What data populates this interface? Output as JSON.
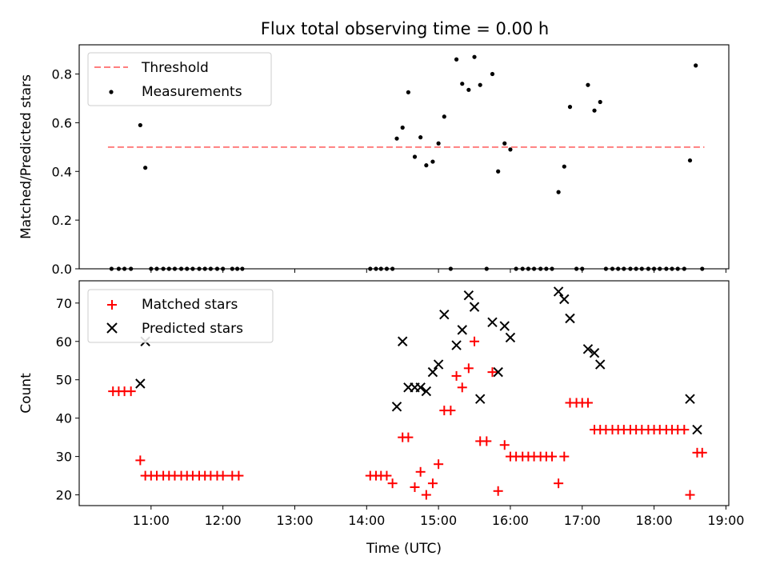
{
  "figure": {
    "title": "Flux total observing time = 0.00 h"
  },
  "chart_data": [
    {
      "type": "scatter",
      "ylabel": "Matched/Predicted stars",
      "ylim": [
        0.0,
        0.92
      ],
      "xlim": [
        10.0,
        19.04
      ],
      "yticks": [
        0.0,
        0.2,
        0.4,
        0.6,
        0.8
      ],
      "ytick_labels": [
        "0.0",
        "0.2",
        "0.4",
        "0.6",
        "0.8"
      ],
      "xticks": [
        11,
        12,
        13,
        14,
        15,
        16,
        17,
        18,
        19
      ],
      "legend_position": "upper-left",
      "threshold": {
        "name": "Threshold",
        "value": 0.5,
        "x_range": [
          10.4,
          18.7
        ],
        "color": "#ff7f7f",
        "style": "dashed"
      },
      "series": [
        {
          "name": "Measurements",
          "marker": "dot",
          "color": "#000000",
          "points": [
            [
              10.45,
              0
            ],
            [
              10.55,
              0
            ],
            [
              10.63,
              0
            ],
            [
              10.72,
              0
            ],
            [
              10.85,
              0.59
            ],
            [
              10.92,
              0.415
            ],
            [
              11.0,
              0
            ],
            [
              11.08,
              0
            ],
            [
              11.17,
              0
            ],
            [
              11.25,
              0
            ],
            [
              11.33,
              0
            ],
            [
              11.42,
              0
            ],
            [
              11.5,
              0
            ],
            [
              11.58,
              0
            ],
            [
              11.67,
              0
            ],
            [
              11.75,
              0
            ],
            [
              11.83,
              0
            ],
            [
              11.92,
              0
            ],
            [
              12.0,
              0
            ],
            [
              12.13,
              0
            ],
            [
              12.2,
              0
            ],
            [
              12.27,
              0
            ],
            [
              14.05,
              0
            ],
            [
              14.13,
              0
            ],
            [
              14.2,
              0
            ],
            [
              14.28,
              0
            ],
            [
              14.36,
              0
            ],
            [
              14.42,
              0.535
            ],
            [
              14.5,
              0.58
            ],
            [
              14.58,
              0.725
            ],
            [
              14.67,
              0.46
            ],
            [
              14.75,
              0.54
            ],
            [
              14.83,
              0.425
            ],
            [
              14.92,
              0.44
            ],
            [
              15.0,
              0.515
            ],
            [
              15.08,
              0.625
            ],
            [
              15.17,
              0
            ],
            [
              15.25,
              0.86
            ],
            [
              15.33,
              0.76
            ],
            [
              15.42,
              0.735
            ],
            [
              15.5,
              0.87
            ],
            [
              15.58,
              0.755
            ],
            [
              15.67,
              0
            ],
            [
              15.75,
              0.8
            ],
            [
              15.83,
              0.4
            ],
            [
              15.92,
              0.515
            ],
            [
              16.0,
              0.49
            ],
            [
              16.08,
              0
            ],
            [
              16.17,
              0
            ],
            [
              16.25,
              0
            ],
            [
              16.33,
              0
            ],
            [
              16.42,
              0
            ],
            [
              16.5,
              0
            ],
            [
              16.58,
              0
            ],
            [
              16.67,
              0.315
            ],
            [
              16.75,
              0.42
            ],
            [
              16.83,
              0.665
            ],
            [
              16.92,
              0
            ],
            [
              17.0,
              0
            ],
            [
              17.08,
              0.755
            ],
            [
              17.17,
              0.65
            ],
            [
              17.25,
              0.685
            ],
            [
              17.33,
              0
            ],
            [
              17.42,
              0
            ],
            [
              17.5,
              0
            ],
            [
              17.58,
              0
            ],
            [
              17.67,
              0
            ],
            [
              17.75,
              0
            ],
            [
              17.83,
              0
            ],
            [
              17.92,
              0
            ],
            [
              18.0,
              0
            ],
            [
              18.08,
              0
            ],
            [
              18.17,
              0
            ],
            [
              18.25,
              0
            ],
            [
              18.33,
              0
            ],
            [
              18.42,
              0
            ],
            [
              18.5,
              0.445
            ],
            [
              18.58,
              0.835
            ],
            [
              18.67,
              0
            ]
          ]
        }
      ]
    },
    {
      "type": "scatter",
      "ylabel": "Count",
      "xlabel": "Time (UTC)",
      "ylim": [
        17.2,
        75.8
      ],
      "xlim": [
        10.0,
        19.04
      ],
      "yticks": [
        20,
        30,
        40,
        50,
        60,
        70
      ],
      "ytick_labels": [
        "20",
        "30",
        "40",
        "50",
        "60",
        "70"
      ],
      "xticks": [
        11,
        12,
        13,
        14,
        15,
        16,
        17,
        18,
        19
      ],
      "xtick_labels": [
        "11:00",
        "12:00",
        "13:00",
        "14:00",
        "15:00",
        "16:00",
        "17:00",
        "18:00",
        "19:00"
      ],
      "legend_position": "upper-left",
      "series": [
        {
          "name": "Matched stars",
          "marker": "plus",
          "color": "#ff0000",
          "points": [
            [
              10.47,
              47
            ],
            [
              10.55,
              47
            ],
            [
              10.63,
              47
            ],
            [
              10.72,
              47
            ],
            [
              10.85,
              29
            ],
            [
              10.92,
              25
            ],
            [
              11.0,
              25
            ],
            [
              11.08,
              25
            ],
            [
              11.17,
              25
            ],
            [
              11.25,
              25
            ],
            [
              11.33,
              25
            ],
            [
              11.42,
              25
            ],
            [
              11.5,
              25
            ],
            [
              11.58,
              25
            ],
            [
              11.67,
              25
            ],
            [
              11.75,
              25
            ],
            [
              11.83,
              25
            ],
            [
              11.92,
              25
            ],
            [
              12.0,
              25
            ],
            [
              12.13,
              25
            ],
            [
              12.22,
              25
            ],
            [
              14.05,
              25
            ],
            [
              14.13,
              25
            ],
            [
              14.2,
              25
            ],
            [
              14.28,
              25
            ],
            [
              14.36,
              23
            ],
            [
              14.5,
              35
            ],
            [
              14.58,
              35
            ],
            [
              14.67,
              22
            ],
            [
              14.75,
              26
            ],
            [
              14.83,
              20
            ],
            [
              14.92,
              23
            ],
            [
              15.0,
              28
            ],
            [
              15.08,
              42
            ],
            [
              15.17,
              42
            ],
            [
              15.25,
              51
            ],
            [
              15.33,
              48
            ],
            [
              15.42,
              53
            ],
            [
              15.5,
              60
            ],
            [
              15.58,
              34
            ],
            [
              15.67,
              34
            ],
            [
              15.75,
              52
            ],
            [
              15.83,
              21
            ],
            [
              15.92,
              33
            ],
            [
              16.0,
              30
            ],
            [
              16.08,
              30
            ],
            [
              16.17,
              30
            ],
            [
              16.25,
              30
            ],
            [
              16.33,
              30
            ],
            [
              16.42,
              30
            ],
            [
              16.5,
              30
            ],
            [
              16.58,
              30
            ],
            [
              16.67,
              23
            ],
            [
              16.75,
              30
            ],
            [
              16.83,
              44
            ],
            [
              16.92,
              44
            ],
            [
              17.0,
              44
            ],
            [
              17.08,
              44
            ],
            [
              17.17,
              37
            ],
            [
              17.25,
              37
            ],
            [
              17.33,
              37
            ],
            [
              17.42,
              37
            ],
            [
              17.5,
              37
            ],
            [
              17.58,
              37
            ],
            [
              17.67,
              37
            ],
            [
              17.75,
              37
            ],
            [
              17.83,
              37
            ],
            [
              17.92,
              37
            ],
            [
              18.0,
              37
            ],
            [
              18.08,
              37
            ],
            [
              18.17,
              37
            ],
            [
              18.25,
              37
            ],
            [
              18.33,
              37
            ],
            [
              18.42,
              37
            ],
            [
              18.5,
              20
            ],
            [
              18.6,
              31
            ],
            [
              18.67,
              31
            ]
          ]
        },
        {
          "name": "Predicted stars",
          "marker": "x",
          "color": "#000000",
          "points": [
            [
              10.85,
              49
            ],
            [
              10.92,
              60
            ],
            [
              14.42,
              43
            ],
            [
              14.5,
              60
            ],
            [
              14.58,
              48
            ],
            [
              14.67,
              48
            ],
            [
              14.75,
              48
            ],
            [
              14.83,
              47
            ],
            [
              14.92,
              52
            ],
            [
              15.0,
              54
            ],
            [
              15.08,
              67
            ],
            [
              15.25,
              59
            ],
            [
              15.33,
              63
            ],
            [
              15.42,
              72
            ],
            [
              15.5,
              69
            ],
            [
              15.58,
              45
            ],
            [
              15.75,
              65
            ],
            [
              15.83,
              52
            ],
            [
              15.92,
              64
            ],
            [
              16.0,
              61
            ],
            [
              16.67,
              73
            ],
            [
              16.75,
              71
            ],
            [
              16.83,
              66
            ],
            [
              17.08,
              58
            ],
            [
              17.17,
              57
            ],
            [
              17.25,
              54
            ],
            [
              18.5,
              45
            ],
            [
              18.6,
              37
            ]
          ]
        }
      ]
    }
  ]
}
